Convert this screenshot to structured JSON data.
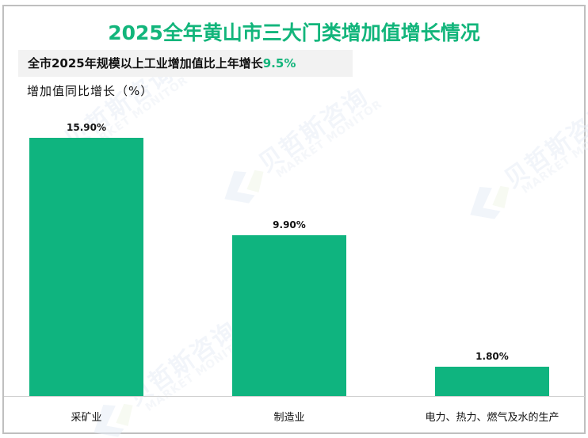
{
  "title": "2025全年黄山市三大门类增加值增长情况",
  "subtitle": {
    "prefix": "全市2025年规模以上工业增加值比上年增长",
    "highlight": "9.5%"
  },
  "y_axis_title": "增加值同比增长（%）",
  "watermark": {
    "cn": "贝哲斯咨询",
    "en": "MARKET MONITOR"
  },
  "colors": {
    "title": "#12b57b",
    "bar": "#0fb47f",
    "highlight": "#12b57b",
    "subtitle_bg": "#f2f2f2",
    "border": "#bfbfbf"
  },
  "bars": [
    {
      "category": "采矿业",
      "value": 15.9,
      "label": "15.90%"
    },
    {
      "category": "制造业",
      "value": 9.9,
      "label": "9.90%"
    },
    {
      "category": "电力、热力、燃气及水的生产",
      "value": 1.8,
      "label": "1.80%"
    }
  ],
  "chart_data": {
    "type": "bar",
    "title": "2025全年黄山市三大门类增加值增长情况",
    "subtitle": "全市2025年规模以上工业增加值比上年增长9.5%",
    "categories": [
      "采矿业",
      "制造业",
      "电力、热力、燃气及水的生产"
    ],
    "values": [
      15.9,
      9.9,
      1.8
    ],
    "data_labels": [
      "15.90%",
      "9.90%",
      "1.80%"
    ],
    "xlabel": "",
    "ylabel": "增加值同比增长（%）",
    "ylim": [
      0,
      17
    ],
    "grid": false,
    "legend": null
  }
}
